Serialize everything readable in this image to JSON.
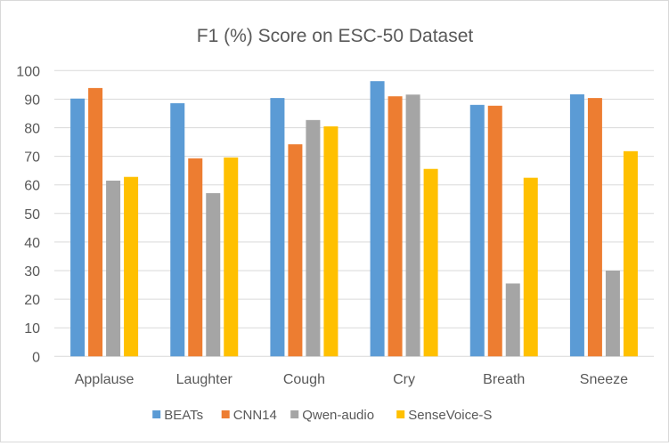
{
  "chart_data": {
    "type": "bar",
    "title": "F1 (%) Score on ESC-50 Dataset",
    "xlabel": "",
    "ylabel": "",
    "ylim": [
      0,
      100
    ],
    "yticks": [
      0,
      10,
      20,
      30,
      40,
      50,
      60,
      70,
      80,
      90,
      100
    ],
    "grid": true,
    "legend_position": "bottom",
    "categories": [
      "Applause",
      "Laughter",
      "Cough",
      "Cry",
      "Breath",
      "Sneeze"
    ],
    "series": [
      {
        "name": "BEATs",
        "color": "#5b9bd5",
        "values": [
          90.2,
          88.6,
          90.4,
          96.3,
          88.0,
          91.7
        ]
      },
      {
        "name": "CNN14",
        "color": "#ed7d31",
        "values": [
          93.9,
          69.3,
          74.2,
          91.0,
          87.7,
          90.4
        ]
      },
      {
        "name": "Qwen-audio",
        "color": "#a5a5a5",
        "values": [
          61.5,
          57.1,
          82.7,
          91.6,
          25.5,
          30.0
        ]
      },
      {
        "name": "SenseVoice-S",
        "color": "#ffc000",
        "values": [
          62.8,
          69.6,
          80.5,
          65.6,
          62.5,
          71.8
        ]
      }
    ]
  }
}
